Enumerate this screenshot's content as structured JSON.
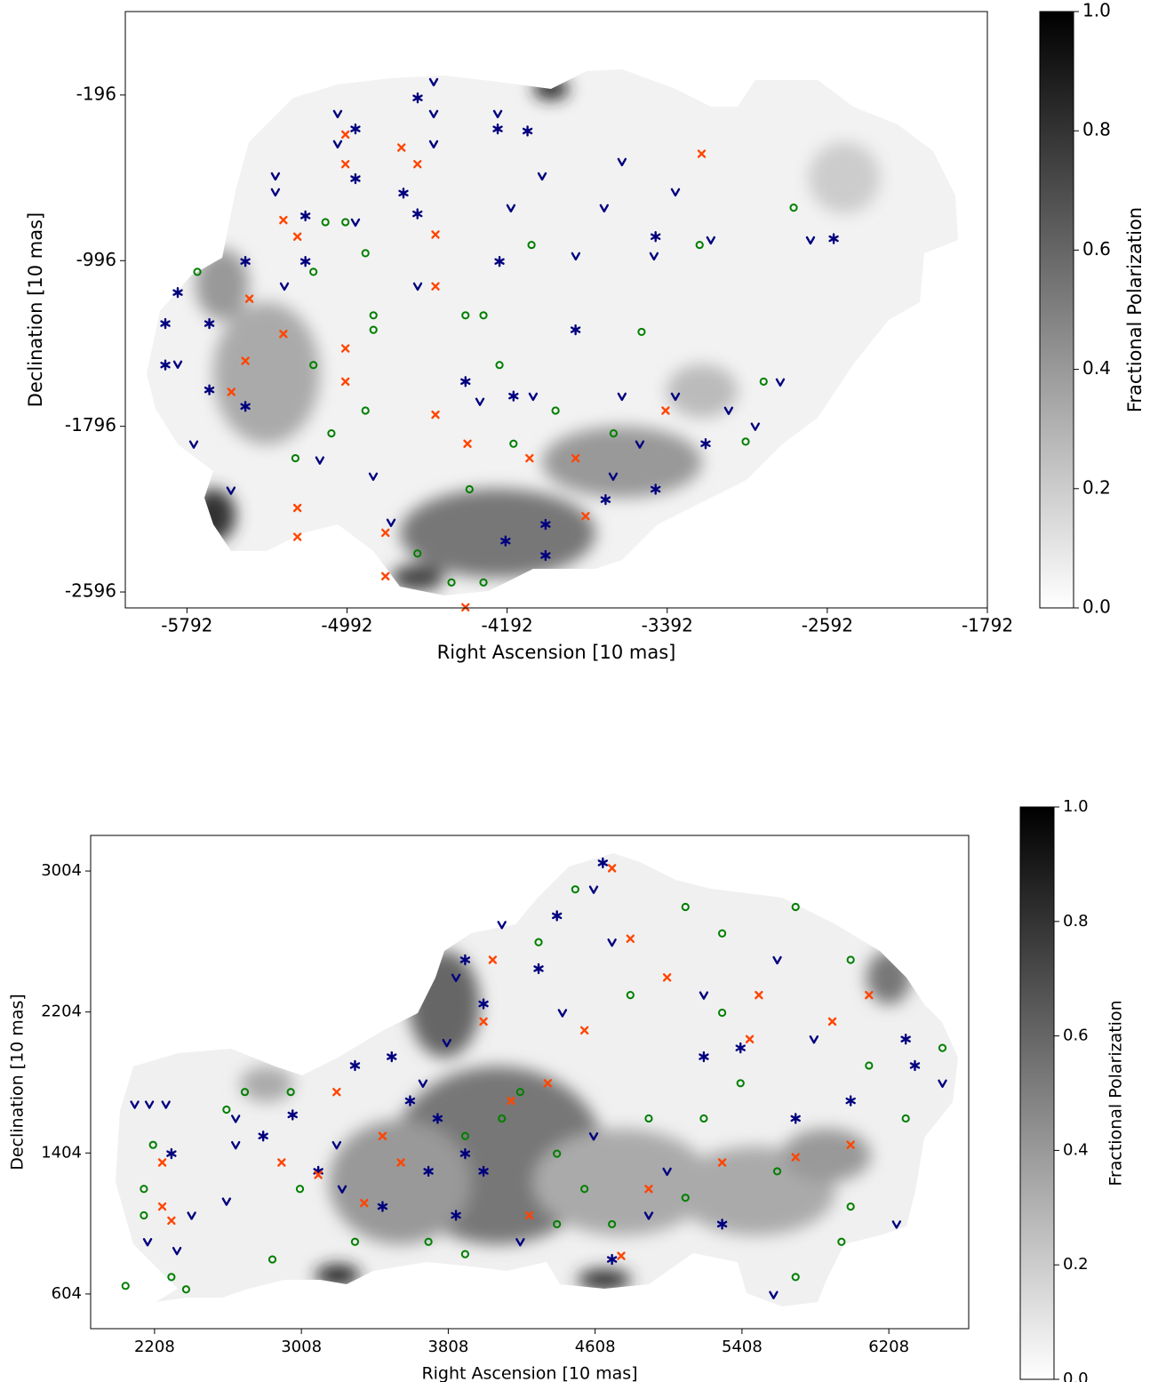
{
  "chart_data": [
    {
      "type": "scatter",
      "xlabel": "Right Ascension [10 mas]",
      "ylabel": "Declination [10 mas]",
      "xlim": [
        -6100,
        -1792
      ],
      "ylim": [
        -2673,
        207
      ],
      "xticks": [
        -5792,
        -4992,
        -4192,
        -3392,
        -2592,
        -1792
      ],
      "yticks": [
        -196,
        -996,
        -1796,
        -2596
      ],
      "colorbar": {
        "label": "Fractional Polarization",
        "lim": [
          0,
          1
        ],
        "ticks": [
          {
            "value": 0,
            "label": "0.0"
          },
          {
            "value": 0.2,
            "label": "0.2"
          },
          {
            "value": 0.4,
            "label": "0.4"
          },
          {
            "value": 0.6,
            "label": "0.6"
          },
          {
            "value": 0.8,
            "label": "0.8"
          },
          {
            "value": 1,
            "label": "1.0"
          }
        ]
      },
      "series": [
        {
          "marker": "v",
          "color": "#00007f",
          "x": [
            -4559,
            -5039,
            -4559,
            -4239,
            -5039,
            -4559,
            -5350,
            -4017,
            -3618,
            -3351,
            -5350,
            -4950,
            -4173,
            -3707,
            -3849,
            -3458,
            -5305,
            -4639,
            -5838,
            -5758,
            -5128,
            -4861,
            -4328,
            -4062,
            -3618,
            -3351,
            -3085,
            -2952,
            -5572,
            -4772,
            -3662,
            -3529,
            -2827,
            -2676,
            -3174
          ],
          "y": [
            -132,
            -286,
            -286,
            -286,
            -432,
            -432,
            -587,
            -587,
            -518,
            -664,
            -664,
            -810,
            -741,
            -741,
            -973,
            -973,
            -1119,
            -1119,
            -1496,
            -1882,
            -1959,
            -2037,
            -1676,
            -1651,
            -1651,
            -1651,
            -1719,
            -1796,
            -2105,
            -2260,
            -2037,
            -1882,
            -1582,
            -896,
            -896
          ]
        },
        {
          "marker": "*",
          "color": "#00007f",
          "x": [
            -4639,
            -4950,
            -4239,
            -4950,
            -4710,
            -5200,
            -5500,
            -5838,
            -5900,
            -5680,
            -5900,
            -5680,
            -5500,
            -4400,
            -4160,
            -4000,
            -4200,
            -4000,
            -3700,
            -3450,
            -3200,
            -3450,
            -2560,
            -4090,
            -3850,
            -4230,
            -5200,
            -4640
          ],
          "y": [
            -210,
            -360,
            -360,
            -600,
            -670,
            -1000,
            -1000,
            -1150,
            -1300,
            -1300,
            -1500,
            -1620,
            -1700,
            -1580,
            -1650,
            -2270,
            -2350,
            -2420,
            -2150,
            -2100,
            -1880,
            -880,
            -890,
            -370,
            -1330,
            -1000,
            -780,
            -770
          ]
        },
        {
          "marker": "x",
          "color": "#ff4500",
          "x": [
            -5000,
            -5000,
            -4640,
            -4720,
            -5310,
            -5240,
            -5480,
            -5310,
            -5000,
            -5500,
            -5000,
            -5570,
            -4550,
            -4390,
            -4080,
            -3850,
            -3400,
            -5240,
            -5240,
            -4800,
            -4800,
            -4400,
            -3800,
            -3220,
            -4550,
            -4550
          ],
          "y": [
            -387,
            -530,
            -530,
            -450,
            -800,
            -880,
            -1180,
            -1350,
            -1420,
            -1480,
            -1580,
            -1630,
            -1740,
            -1880,
            -1950,
            -1950,
            -1720,
            -2190,
            -2330,
            -2310,
            -2520,
            -2670,
            -2230,
            -480,
            -870,
            -1120
          ]
        },
        {
          "marker": "o",
          "color": "#007f00",
          "x": [
            -5100,
            -5000,
            -5160,
            -4900,
            -5740,
            -5160,
            -4860,
            -4860,
            -4400,
            -4310,
            -4230,
            -5250,
            -5070,
            -4900,
            -4160,
            -4380,
            -4640,
            -4470,
            -4310,
            -3950,
            -3660,
            -3000,
            -2760,
            -3230,
            -3520,
            -2910,
            -4070
          ],
          "y": [
            -810,
            -810,
            -1050,
            -960,
            -1050,
            -1500,
            -1260,
            -1330,
            -1260,
            -1260,
            -1500,
            -1950,
            -1830,
            -1720,
            -1880,
            -2100,
            -2410,
            -2550,
            -2550,
            -1720,
            -1830,
            -1870,
            -740,
            -920,
            -1340,
            -1580,
            -920
          ]
        }
      ]
    },
    {
      "type": "scatter",
      "xlabel": "Right Ascension [10 mas]",
      "ylabel": "Declination [10 mas]",
      "xlim": [
        1860,
        6643
      ],
      "ylim": [
        407,
        3206
      ],
      "xticks": [
        2208,
        3008,
        3808,
        4608,
        5408,
        6208
      ],
      "yticks": [
        604,
        1404,
        2204,
        3004
      ],
      "colorbar": {
        "label": "Fractional Polarization",
        "lim": [
          0,
          1
        ],
        "ticks": [
          {
            "value": 0,
            "label": "0.0"
          },
          {
            "value": 0.2,
            "label": "0.2"
          },
          {
            "value": 0.4,
            "label": "0.4"
          },
          {
            "value": 0.6,
            "label": "0.6"
          },
          {
            "value": 0.8,
            "label": "0.8"
          },
          {
            "value": 1,
            "label": "1.0"
          }
        ]
      },
      "series": [
        {
          "marker": "v",
          "color": "#00007f",
          "x": [
            2100,
            2180,
            2270,
            2650,
            2650,
            2600,
            2410,
            2170,
            2330,
            3230,
            3200,
            3670,
            3850,
            4100,
            4600,
            4700,
            5200,
            5600,
            5800,
            6500,
            4600,
            5000,
            4200,
            4900,
            5580,
            6250,
            4430,
            3800
          ],
          "y": [
            1680,
            1680,
            1680,
            1600,
            1450,
            1130,
            1050,
            900,
            850,
            1200,
            1450,
            1800,
            2400,
            2700,
            2900,
            2600,
            2300,
            2500,
            2050,
            1800,
            1500,
            1300,
            900,
            1050,
            600,
            1000,
            2200,
            2030
          ]
        },
        {
          "marker": "*",
          "color": "#00007f",
          "x": [
            3300,
            3500,
            3600,
            3750,
            3700,
            3900,
            4000,
            3450,
            3850,
            4000,
            3900,
            4300,
            4400,
            4650,
            5400,
            5200,
            5700,
            6000,
            6300,
            2800,
            2960,
            2300,
            5300,
            4700,
            6350,
            3100
          ],
          "y": [
            1900,
            1950,
            1700,
            1600,
            1300,
            1400,
            1300,
            1100,
            1050,
            2250,
            2500,
            2450,
            2750,
            3050,
            2000,
            1950,
            1600,
            1700,
            2050,
            1500,
            1620,
            1400,
            1000,
            800,
            1900,
            1300
          ]
        },
        {
          "marker": "x",
          "color": "#ff4500",
          "x": [
            2250,
            2250,
            2300,
            2900,
            3100,
            3200,
            3450,
            3550,
            3350,
            4000,
            4050,
            4350,
            4550,
            4700,
            4800,
            5000,
            5500,
            5450,
            5900,
            6000,
            5300,
            4900,
            4150,
            4250,
            4750,
            5700,
            6100
          ],
          "y": [
            1350,
            1100,
            1020,
            1350,
            1280,
            1750,
            1500,
            1350,
            1120,
            2150,
            2500,
            1800,
            2100,
            3020,
            2620,
            2400,
            2300,
            2050,
            2150,
            1450,
            1350,
            1200,
            1700,
            1050,
            820,
            1380,
            2300
          ]
        },
        {
          "marker": "o",
          "color": "#007f00",
          "x": [
            2200,
            2150,
            2150,
            2300,
            2380,
            2050,
            2600,
            2700,
            2950,
            2850,
            3000,
            3300,
            3700,
            3900,
            4100,
            4200,
            4400,
            4550,
            4700,
            4900,
            5100,
            5200,
            5400,
            5600,
            5700,
            5950,
            6000,
            6100,
            6300,
            6500,
            4500,
            4300,
            4800,
            5100,
            5300,
            5700,
            6000,
            5300,
            3900,
            4400
          ],
          "y": [
            1450,
            1050,
            1200,
            700,
            630,
            650,
            1650,
            1750,
            1750,
            800,
            1200,
            900,
            900,
            830,
            1600,
            1750,
            1400,
            1200,
            1000,
            1600,
            1150,
            1600,
            1800,
            1300,
            700,
            900,
            1100,
            1900,
            1600,
            2000,
            2900,
            2600,
            2300,
            2800,
            2650,
            2800,
            2500,
            2200,
            1500,
            1000
          ]
        }
      ]
    }
  ]
}
